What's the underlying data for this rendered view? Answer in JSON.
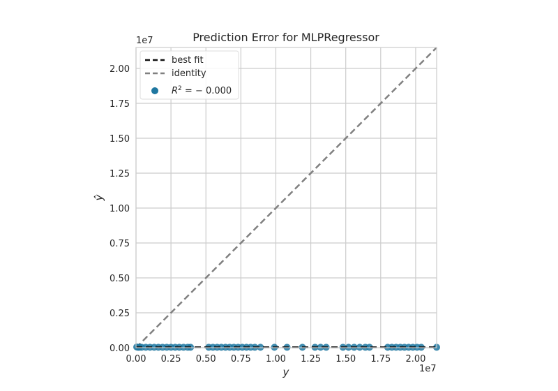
{
  "chart_data": {
    "type": "scatter",
    "title": "Prediction Error for MLPRegressor",
    "xlabel": "y",
    "ylabel": "ŷ",
    "x_offset_label": "1e7",
    "y_offset_label": "1e7",
    "xlim": [
      0,
      21500000
    ],
    "ylim": [
      0,
      21500000
    ],
    "xticks": [
      0,
      2500000,
      5000000,
      7500000,
      10000000,
      12500000,
      15000000,
      17500000,
      20000000
    ],
    "yticks": [
      0,
      2500000,
      5000000,
      7500000,
      10000000,
      12500000,
      15000000,
      17500000,
      20000000
    ],
    "xtick_labels": [
      "0.00",
      "0.25",
      "0.50",
      "0.75",
      "1.00",
      "1.25",
      "1.50",
      "1.75",
      "2.00"
    ],
    "ytick_labels": [
      "0.00",
      "0.25",
      "0.50",
      "0.75",
      "1.00",
      "1.25",
      "1.50",
      "1.75",
      "2.00"
    ],
    "grid": true,
    "legend_position": "top-left",
    "legend": {
      "best_fit": "best fit",
      "identity": "identity",
      "r2_prefix": "R",
      "r2_value": " = − 0.000"
    },
    "colors": {
      "points": "#1f77a0",
      "best_fit": "#111111",
      "identity": "#808080",
      "grid": "#cccccc",
      "spine": "#cccccc"
    },
    "series": [
      {
        "name": "R² = −0.000",
        "x": [
          50000,
          150000,
          250000,
          400000,
          700000,
          1000000,
          1300000,
          1600000,
          1900000,
          2200000,
          2500000,
          2800000,
          3100000,
          3400000,
          3700000,
          3900000,
          5200000,
          5500000,
          5800000,
          6100000,
          6400000,
          6700000,
          7000000,
          7300000,
          7600000,
          7900000,
          8200000,
          8500000,
          8900000,
          9900000,
          10800000,
          11900000,
          12800000,
          13200000,
          13600000,
          14800000,
          15200000,
          15600000,
          16000000,
          16400000,
          16700000,
          18000000,
          18300000,
          18600000,
          18900000,
          19200000,
          19500000,
          19800000,
          20100000,
          20400000,
          21500000
        ],
        "y": [
          50000,
          30000,
          40000,
          30000,
          30000,
          30000,
          30000,
          30000,
          30000,
          30000,
          30000,
          30000,
          30000,
          30000,
          30000,
          30000,
          30000,
          30000,
          30000,
          30000,
          30000,
          30000,
          30000,
          30000,
          30000,
          30000,
          30000,
          30000,
          30000,
          30000,
          30000,
          30000,
          30000,
          30000,
          30000,
          30000,
          30000,
          30000,
          30000,
          30000,
          30000,
          30000,
          30000,
          30000,
          30000,
          30000,
          30000,
          30000,
          30000,
          30000,
          30000
        ]
      }
    ],
    "best_fit_line": {
      "x": [
        0,
        21500000
      ],
      "y": [
        30000,
        30000
      ]
    },
    "identity_line": {
      "x": [
        0,
        21500000
      ],
      "y": [
        0,
        21500000
      ]
    }
  }
}
